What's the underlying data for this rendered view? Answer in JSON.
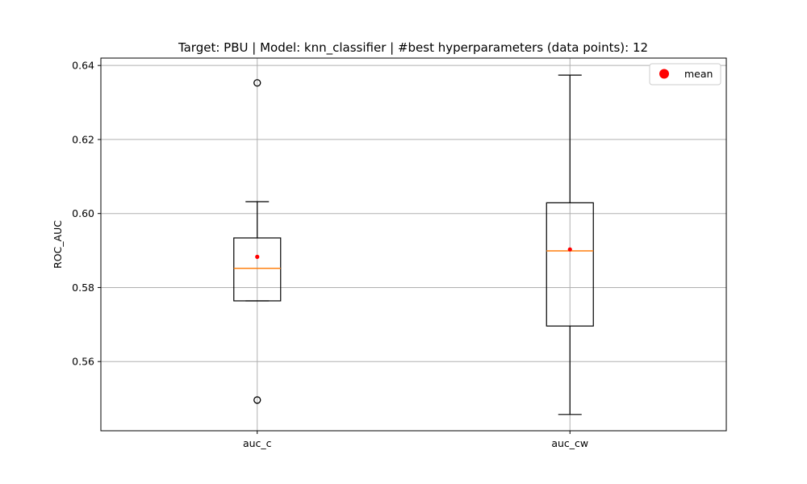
{
  "chart_data": {
    "type": "box",
    "title": "Target: PBU | Model: knn_classifier | #best hyperparameters (data points): 12",
    "xlabel": "",
    "ylabel": "ROC_AUC",
    "ylim": [
      0.5413,
      0.642
    ],
    "yticks": [
      0.56,
      0.58,
      0.6,
      0.62,
      0.64
    ],
    "ytick_labels": [
      "0.56",
      "0.58",
      "0.60",
      "0.62",
      "0.64"
    ],
    "categories": [
      "auc_c",
      "auc_cw"
    ],
    "grid": true,
    "legend": {
      "position": "top-right",
      "entries": [
        "mean"
      ]
    },
    "colors": {
      "median": "#ff7f0e",
      "mean": "#ff0000",
      "box": "#000000",
      "grid": "#b0b0b0"
    },
    "boxes": [
      {
        "label": "auc_c",
        "whisker_low": 0.5764,
        "q1": 0.5764,
        "median": 0.5852,
        "q3": 0.5934,
        "whisker_high": 0.6032,
        "mean": 0.5883,
        "outliers": [
          0.6353,
          0.5496
        ]
      },
      {
        "label": "auc_cw",
        "whisker_low": 0.5457,
        "q1": 0.5696,
        "median": 0.5899,
        "q3": 0.6029,
        "whisker_high": 0.6374,
        "mean": 0.5903,
        "outliers": []
      }
    ]
  }
}
